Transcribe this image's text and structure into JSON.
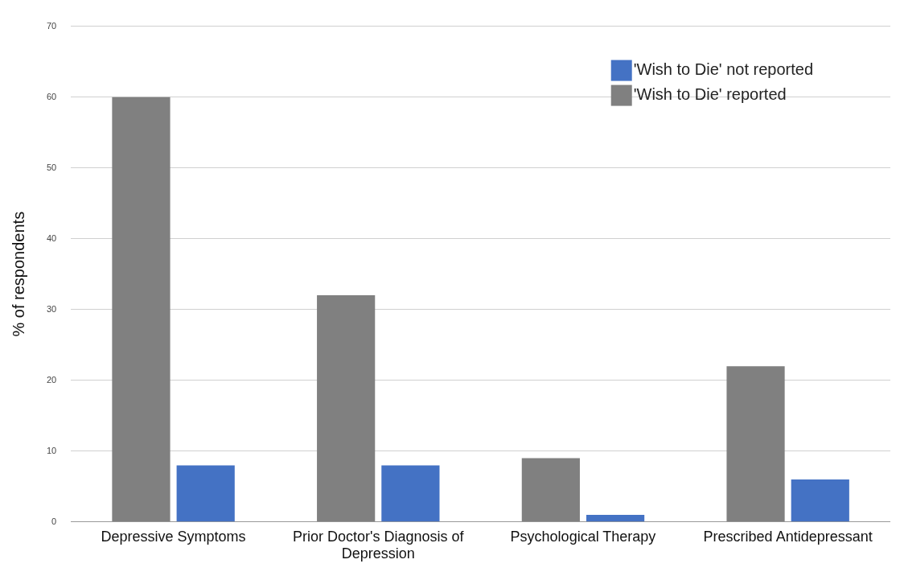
{
  "chart_data": {
    "type": "bar",
    "ylabel": "% of respondents",
    "categories": [
      "Depressive Symptoms",
      "Prior Doctor's Diagnosis of Depression",
      "Psychological Therapy",
      "Prescribed Antidepressant"
    ],
    "series": [
      {
        "name": "'Wish to Die' reported",
        "color": "#808080",
        "values": [
          60,
          32,
          9,
          22
        ]
      },
      {
        "name": "'Wish to Die' not reported",
        "color": "#4472c4",
        "values": [
          8,
          8,
          1,
          6
        ]
      }
    ],
    "ylim": [
      0,
      70
    ],
    "yticks": [
      0,
      10,
      20,
      30,
      40,
      50,
      60,
      70
    ],
    "grid": "y",
    "legend": "top right"
  }
}
